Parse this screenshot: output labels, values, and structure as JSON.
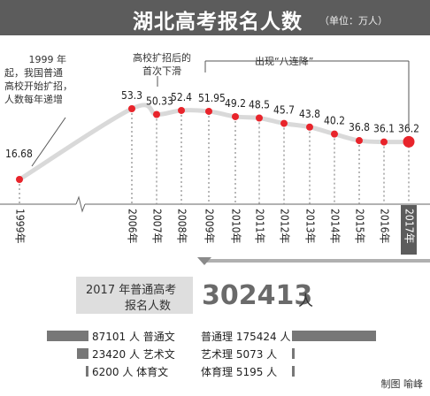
{
  "title": "湖北高考报名人数",
  "unit_note": "（单位：万人）",
  "notes": {
    "start_lines": [
      "1999 年",
      "起，我国普通",
      "高校开始扩招，",
      "人数每年递增"
    ],
    "peak_lines": [
      "高校扩招后的",
      "首次下滑"
    ],
    "decline": "出现“八连降”"
  },
  "chart_data": {
    "type": "line",
    "title": "湖北高考报名人数",
    "unit": "万人",
    "x": [
      "1999年",
      "2006年",
      "2007年",
      "2008年",
      "2009年",
      "2010年",
      "2011年",
      "2012年",
      "2013年",
      "2014年",
      "2015年",
      "2016年",
      "2017年"
    ],
    "values": [
      16.68,
      53.3,
      50.33,
      52.4,
      51.95,
      49.2,
      48.5,
      45.7,
      43.8,
      40.2,
      36.8,
      36.1,
      36.2
    ],
    "value_labels": [
      "16.68",
      "53.3",
      "50.33",
      "52.4",
      "51.95",
      "49.2",
      "48.5",
      "45.7",
      "43.8",
      "40.2",
      "36.8",
      "36.1",
      "36.2"
    ],
    "highlight": "2017年",
    "x_break_after": "1999年",
    "grid": false,
    "legend": "none"
  },
  "stats": {
    "label_line1": "2017 年普通高考",
    "label_line2": "报名人数",
    "total": "302413",
    "total_unit": "人"
  },
  "breakdown": [
    {
      "left": "87101 人 普通文",
      "left_value": 87101,
      "right": "普通理 175424 人",
      "right_value": 175424
    },
    {
      "left": "23420 人 艺术文",
      "left_value": 23420,
      "right": "艺术理 5073 人",
      "right_value": 5073
    },
    {
      "left": "6200 人 体育文",
      "left_value": 6200,
      "right": "体育理 5195 人",
      "right_value": 5195
    }
  ],
  "credit": "制图 喻峰",
  "colors": {
    "header": "#5c5c5c",
    "curve": "#d9d9d9",
    "point": "#e8242b",
    "axis_highlight": "#5c5c5c",
    "bar": "#777777"
  }
}
